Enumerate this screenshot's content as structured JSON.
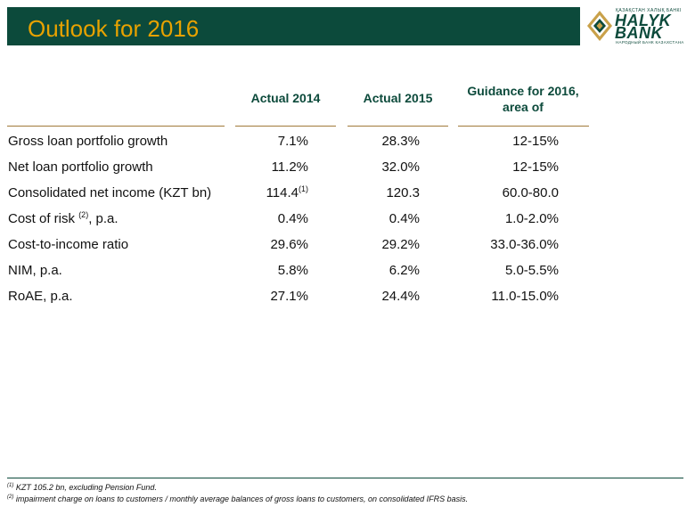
{
  "title": "Outlook for 2016",
  "logo": {
    "top_text": "ҚАЗАҚСТАН ХАЛЫҚ БАНКІ",
    "name_line1": "HALYK",
    "name_line2": "BANK",
    "sub_text": "НАРОДНЫЙ БАНК КАЗАХСТАНА"
  },
  "table": {
    "headers": [
      "Actual 2014",
      "Actual 2015",
      "Guidance for 2016,",
      "area of"
    ],
    "rows": [
      {
        "label": "Gross loan portfolio growth",
        "a2014": "7.1%",
        "a2015": "28.3%",
        "g2016": "12-15%"
      },
      {
        "label": "Net loan portfolio growth",
        "a2014": "11.2%",
        "a2015": "32.0%",
        "g2016": "12-15%"
      },
      {
        "label": "Consolidated net income (KZT bn)",
        "a2014": "114.4",
        "a2014_note": "(1)",
        "a2015": "120.3",
        "g2016": "60.0-80.0"
      },
      {
        "label_pre": "Cost of risk ",
        "label_note": "(2)",
        "label_post": ", p.a.",
        "a2014": "0.4%",
        "a2015": "0.4%",
        "g2016": "1.0-2.0%"
      },
      {
        "label": "Cost-to-income ratio",
        "a2014": "29.6%",
        "a2015": "29.2%",
        "g2016": "33.0-36.0%"
      },
      {
        "label": "NIM, p.a.",
        "a2014": "5.8%",
        "a2015": "6.2%",
        "g2016": "5.0-5.5%"
      },
      {
        "label": "RoAE, p.a.",
        "a2014": "27.1%",
        "a2015": "24.4%",
        "g2016": "11.0-15.0%"
      }
    ]
  },
  "footnotes": [
    {
      "mark": "(1)",
      "text": " KZT 105.2 bn, excluding Pension Fund."
    },
    {
      "mark": "(2)",
      "text": " impairment charge on loans to customers / monthly average balances of gross loans to customers, on consolidated IFRS basis."
    }
  ],
  "colors": {
    "title_bg": "#0c4a3b",
    "title_text": "#e8a200",
    "header_text": "#0c4a3b"
  }
}
